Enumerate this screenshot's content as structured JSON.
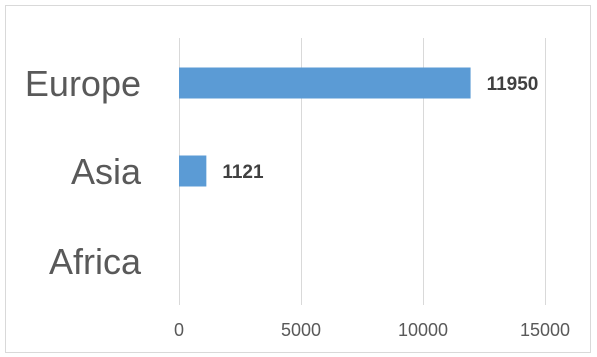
{
  "chart_data": {
    "type": "bar",
    "orientation": "horizontal",
    "title": "",
    "xlabel": "",
    "ylabel": "",
    "categories": [
      "Europe",
      "Asia",
      "Africa"
    ],
    "values": [
      11950,
      1121,
      0
    ],
    "data_labels": [
      "11950",
      "1121",
      ""
    ],
    "xlim": [
      0,
      15000
    ],
    "xticks": [
      0,
      5000,
      10000,
      15000
    ],
    "xtick_labels": [
      "0",
      "5000",
      "10000",
      "15000"
    ],
    "grid": "vertical",
    "legend": "none",
    "bar_color": "#5b9bd5"
  }
}
